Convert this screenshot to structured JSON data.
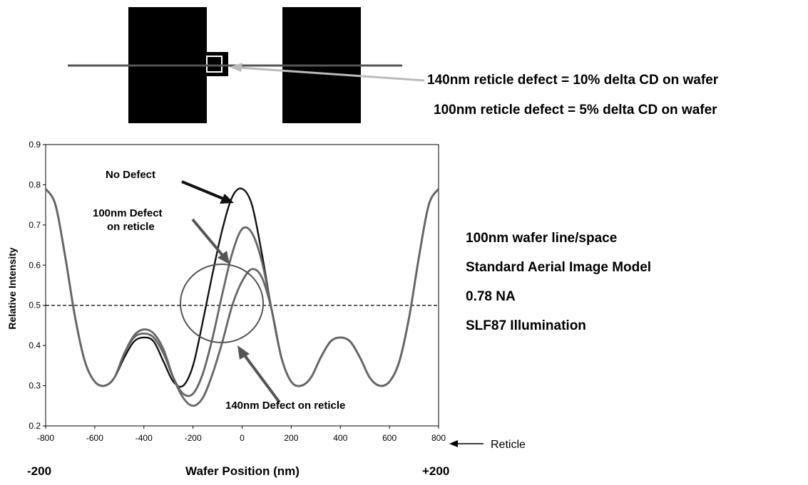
{
  "reticle_schematic": {
    "annotations": [
      "140nm reticle defect = 10% delta CD on wafer",
      "100nm reticle defect = 5% delta CD on wafer"
    ],
    "colors": {
      "lines": "#000000",
      "cutline": "#555555",
      "pointer": "#bbbbbb"
    }
  },
  "simulation_notes": [
    "100nm wafer line/space",
    "Standard Aerial Image Model",
    "0.78 NA",
    "SLF87 Illumination"
  ],
  "secondary_axis": {
    "left": "-200",
    "title": "Wafer Position (nm)",
    "right": "+200",
    "reticle_label": "Reticle"
  },
  "chart_data": {
    "type": "line",
    "xlabel": "",
    "ylabel": "Relative Intensity",
    "xlim": [
      -800,
      800
    ],
    "ylim": [
      0.2,
      0.9
    ],
    "xticks": [
      -800,
      -600,
      -400,
      -200,
      0,
      200,
      400,
      600,
      800
    ],
    "yticks": [
      0.2,
      0.3,
      0.4,
      0.5,
      0.6,
      0.7,
      0.8,
      0.9
    ],
    "grid": false,
    "threshold": 0.5,
    "series": [
      {
        "name": "No Defect",
        "color": "#111111",
        "x": [
          -800,
          -760,
          -720,
          -680,
          -640,
          -600,
          -560,
          -520,
          -480,
          -440,
          -400,
          -360,
          -320,
          -280,
          -240,
          -200,
          -160,
          -120,
          -80,
          -40,
          0,
          40,
          80,
          120,
          160,
          200,
          240,
          280,
          320,
          360,
          400,
          440,
          480,
          520,
          560,
          600,
          640,
          680,
          720,
          760,
          800
        ],
        "y": [
          0.79,
          0.75,
          0.62,
          0.47,
          0.36,
          0.31,
          0.3,
          0.32,
          0.37,
          0.41,
          0.42,
          0.41,
          0.36,
          0.31,
          0.3,
          0.35,
          0.46,
          0.58,
          0.69,
          0.77,
          0.79,
          0.75,
          0.63,
          0.49,
          0.37,
          0.31,
          0.3,
          0.32,
          0.37,
          0.41,
          0.42,
          0.41,
          0.37,
          0.32,
          0.3,
          0.31,
          0.36,
          0.47,
          0.62,
          0.75,
          0.79
        ]
      },
      {
        "name": "100nm Defect on reticle",
        "color": "#666666",
        "x": [
          -800,
          -760,
          -720,
          -680,
          -640,
          -600,
          -560,
          -520,
          -480,
          -440,
          -400,
          -360,
          -320,
          -280,
          -240,
          -200,
          -160,
          -120,
          -80,
          -40,
          0,
          40,
          80,
          120,
          160,
          200,
          240,
          280,
          320,
          360,
          400,
          440,
          480,
          520,
          560,
          600,
          640,
          680,
          720,
          760,
          800
        ],
        "y": [
          0.79,
          0.75,
          0.62,
          0.47,
          0.36,
          0.31,
          0.3,
          0.32,
          0.38,
          0.42,
          0.43,
          0.42,
          0.38,
          0.32,
          0.28,
          0.28,
          0.33,
          0.42,
          0.53,
          0.63,
          0.69,
          0.68,
          0.61,
          0.49,
          0.37,
          0.31,
          0.3,
          0.32,
          0.37,
          0.41,
          0.42,
          0.41,
          0.37,
          0.32,
          0.3,
          0.31,
          0.36,
          0.47,
          0.62,
          0.75,
          0.79
        ]
      },
      {
        "name": "140nm Defect on reticle",
        "color": "#666666",
        "x": [
          -800,
          -760,
          -720,
          -680,
          -640,
          -600,
          -560,
          -520,
          -480,
          -440,
          -400,
          -360,
          -320,
          -280,
          -240,
          -200,
          -160,
          -120,
          -80,
          -40,
          0,
          40,
          80,
          120,
          160,
          200,
          240,
          280,
          320,
          360,
          400,
          440,
          480,
          520,
          560,
          600,
          640,
          680,
          720,
          760,
          800
        ],
        "y": [
          0.79,
          0.75,
          0.62,
          0.47,
          0.36,
          0.31,
          0.3,
          0.32,
          0.38,
          0.425,
          0.44,
          0.43,
          0.39,
          0.32,
          0.27,
          0.25,
          0.27,
          0.33,
          0.41,
          0.5,
          0.56,
          0.59,
          0.57,
          0.49,
          0.37,
          0.31,
          0.3,
          0.32,
          0.37,
          0.41,
          0.42,
          0.41,
          0.37,
          0.32,
          0.3,
          0.31,
          0.36,
          0.47,
          0.62,
          0.75,
          0.79
        ]
      }
    ],
    "annotations": [
      "No Defect",
      "100nm Defect",
      "on reticle",
      "140nm Defect on reticle"
    ]
  }
}
